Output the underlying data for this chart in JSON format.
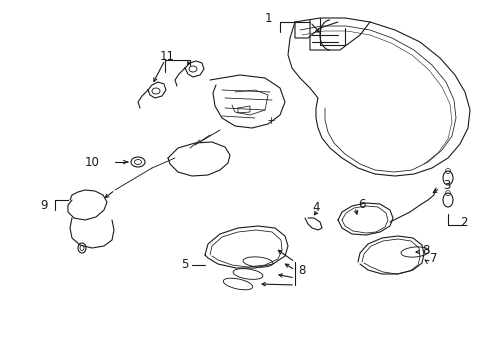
{
  "bg_color": "#ffffff",
  "line_color": "#1a1a1a",
  "figsize": [
    4.89,
    3.6
  ],
  "dpi": 100,
  "label_fontsize": 8.5,
  "lw": 0.8
}
